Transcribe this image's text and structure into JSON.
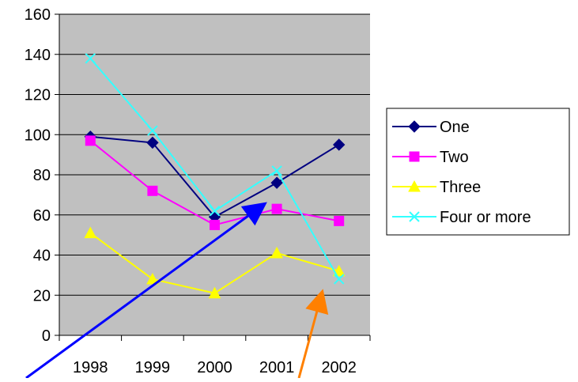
{
  "chart_data": {
    "type": "line",
    "categories": [
      "1998",
      "1999",
      "2000",
      "2001",
      "2002"
    ],
    "yticks": [
      "0",
      "20",
      "40",
      "60",
      "80",
      "100",
      "120",
      "140",
      "160"
    ],
    "ylim": [
      0,
      160
    ],
    "grid": "horizontal",
    "plot_background": "#c0c0c0",
    "legend_position": "right",
    "series": [
      {
        "name": "One",
        "color": "#000080",
        "marker": "diamond",
        "values": [
          99,
          96,
          59,
          76,
          95
        ]
      },
      {
        "name": "Two",
        "color": "#ff00ff",
        "marker": "square",
        "values": [
          97,
          72,
          55,
          63,
          57
        ]
      },
      {
        "name": "Three",
        "color": "#ffff00",
        "marker": "triangle",
        "values": [
          51,
          28,
          21,
          41,
          32
        ]
      },
      {
        "name": "Four or more",
        "color": "#33ffff",
        "marker": "x",
        "values": [
          138,
          102,
          62,
          82,
          28
        ]
      }
    ],
    "annotations": [
      {
        "type": "arrow",
        "color": "#0000ff",
        "direction": "up-right",
        "points_at": "2000-2001 crossing near 65"
      },
      {
        "type": "arrow",
        "color": "#ff8000",
        "direction": "up",
        "points_at": "2001-2002 drop near 20"
      }
    ]
  }
}
